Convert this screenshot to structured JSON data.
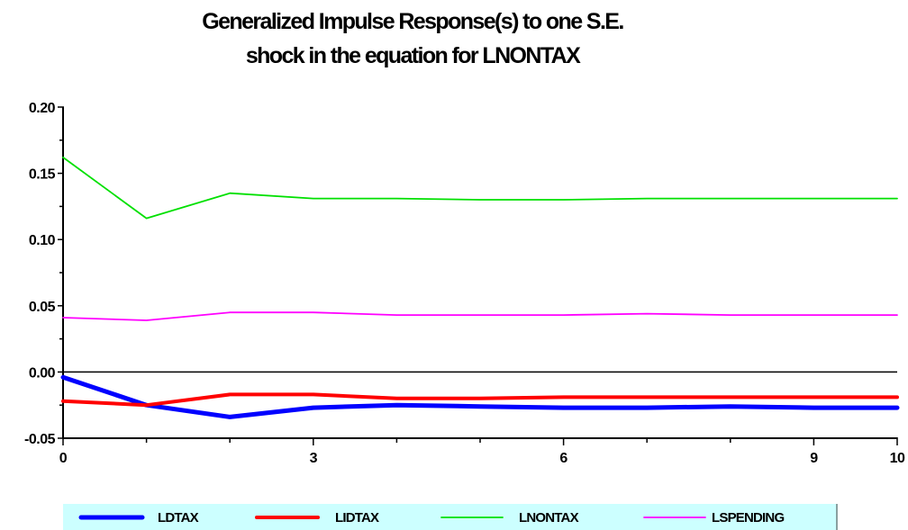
{
  "chart_data": {
    "type": "line",
    "title": [
      "Generalized Impulse Response(s) to one S.E.",
      "shock in the equation for LNONTAX"
    ],
    "xlabel": "",
    "ylabel": "",
    "x": [
      0,
      1,
      2,
      3,
      4,
      5,
      6,
      7,
      8,
      9,
      10
    ],
    "xlim": [
      0,
      10
    ],
    "ylim": [
      -0.05,
      0.2
    ],
    "x_ticks": [
      0,
      3,
      6,
      9,
      10
    ],
    "x_tick_labels": [
      "0",
      "3",
      "6",
      "9",
      "10"
    ],
    "y_ticks": [
      -0.05,
      0.0,
      0.05,
      0.1,
      0.15,
      0.2
    ],
    "y_tick_labels": [
      "-0.05",
      "0.00",
      "0.05",
      "0.10",
      "0.15",
      "0.20"
    ],
    "zero_line": true,
    "grid": false,
    "legend_position": "bottom",
    "series": [
      {
        "name": "LDTAX",
        "color": "#0000ff",
        "width": "thick",
        "values": [
          -0.004,
          -0.025,
          -0.034,
          -0.027,
          -0.025,
          -0.026,
          -0.027,
          -0.027,
          -0.026,
          -0.027,
          -0.027
        ]
      },
      {
        "name": "LIDTAX",
        "color": "#ff0000",
        "width": "medium",
        "values": [
          -0.022,
          -0.025,
          -0.017,
          -0.017,
          -0.02,
          -0.02,
          -0.019,
          -0.019,
          -0.019,
          -0.019,
          -0.019
        ]
      },
      {
        "name": "LNONTAX",
        "color": "#00e000",
        "width": "thin",
        "values": [
          0.162,
          0.116,
          0.135,
          0.131,
          0.131,
          0.13,
          0.13,
          0.131,
          0.131,
          0.131,
          0.131
        ]
      },
      {
        "name": "LSPENDING",
        "color": "#ff00ff",
        "width": "thin",
        "values": [
          0.041,
          0.039,
          0.045,
          0.045,
          0.043,
          0.043,
          0.043,
          0.044,
          0.043,
          0.043,
          0.043
        ]
      }
    ],
    "legend_background": "#ccffff"
  }
}
